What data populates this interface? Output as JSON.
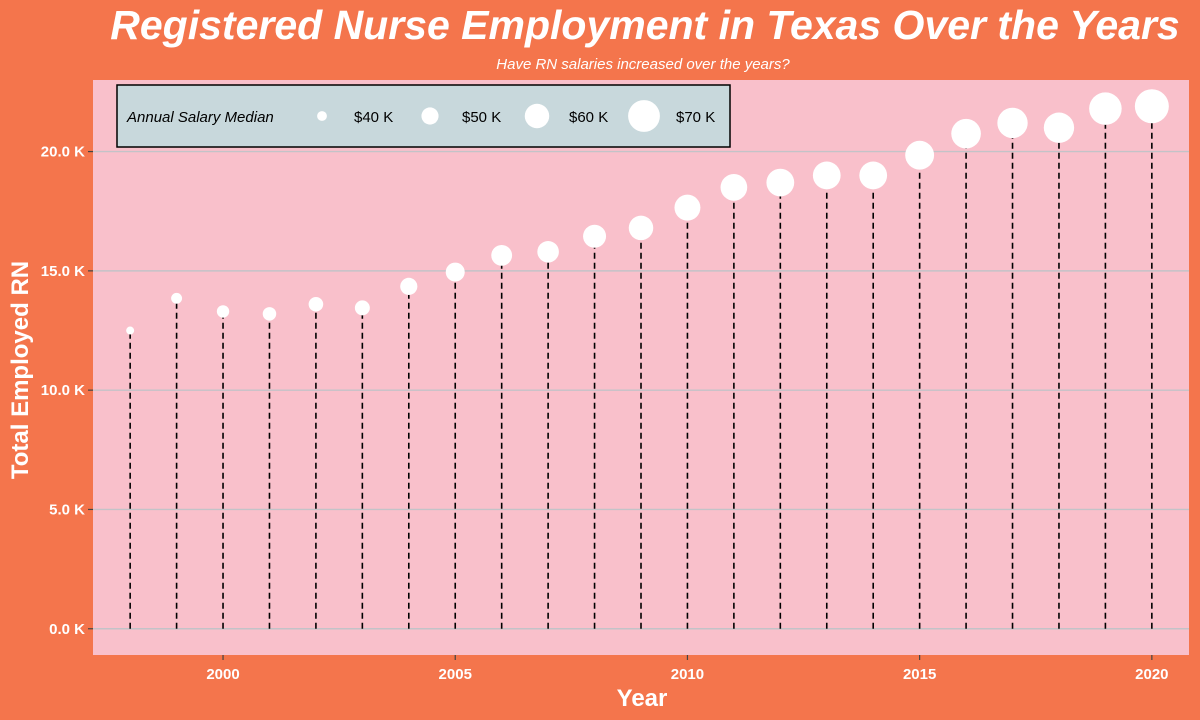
{
  "colors": {
    "background": "#f4754c",
    "panel": "#f9c0cb",
    "legend_bg": "#c8d8dc",
    "point": "#ffffff",
    "stem": "#000000",
    "grid": "#c3c3c8"
  },
  "chart_data": {
    "type": "scatter",
    "style": "lollipop with dashed vertical stems; point size encodes annual salary median",
    "title": "Registered Nurse Employment in Texas Over the Years",
    "subtitle": "Have RN salaries increased over the years?",
    "xlabel": "Year",
    "ylabel": "Total Employed RN",
    "xlim": [
      1997.2,
      2020.8
    ],
    "ylim": [
      -1100,
      23000
    ],
    "x_ticks": [
      2000,
      2005,
      2010,
      2015,
      2020
    ],
    "x_tick_labels": [
      "2000",
      "2005",
      "2010",
      "2015",
      "2020"
    ],
    "y_ticks": [
      0,
      5000,
      10000,
      15000,
      20000
    ],
    "y_tick_labels": [
      "0.0 K",
      "5.0 K",
      "10.0 K",
      "15.0 K",
      "20.0 K"
    ],
    "grid": "horizontal major gridlines",
    "size_legend": {
      "title": "Annual Salary Median",
      "placement": "top-left inside panel",
      "values": [
        40000,
        50000,
        60000,
        70000
      ],
      "labels": [
        "$40 K",
        "$50 K",
        "$60 K",
        "$70 K"
      ]
    },
    "points": [
      {
        "year": 1998,
        "employed": 12500,
        "salary": 37500
      },
      {
        "year": 1999,
        "employed": 13850,
        "salary": 41500
      },
      {
        "year": 2000,
        "employed": 13300,
        "salary": 43500
      },
      {
        "year": 2001,
        "employed": 13200,
        "salary": 45000
      },
      {
        "year": 2002,
        "employed": 13600,
        "salary": 46500
      },
      {
        "year": 2003,
        "employed": 13450,
        "salary": 47000
      },
      {
        "year": 2004,
        "employed": 14350,
        "salary": 50000
      },
      {
        "year": 2005,
        "employed": 14950,
        "salary": 52500
      },
      {
        "year": 2006,
        "employed": 15650,
        "salary": 55000
      },
      {
        "year": 2007,
        "employed": 15800,
        "salary": 56000
      },
      {
        "year": 2008,
        "employed": 16450,
        "salary": 58000
      },
      {
        "year": 2009,
        "employed": 16800,
        "salary": 60000
      },
      {
        "year": 2010,
        "employed": 17650,
        "salary": 62000
      },
      {
        "year": 2011,
        "employed": 18500,
        "salary": 63000
      },
      {
        "year": 2012,
        "employed": 18700,
        "salary": 64500
      },
      {
        "year": 2013,
        "employed": 19000,
        "salary": 64500
      },
      {
        "year": 2014,
        "employed": 19000,
        "salary": 64500
      },
      {
        "year": 2015,
        "employed": 19850,
        "salary": 66000
      },
      {
        "year": 2016,
        "employed": 20750,
        "salary": 67000
      },
      {
        "year": 2017,
        "employed": 21200,
        "salary": 68000
      },
      {
        "year": 2018,
        "employed": 21000,
        "salary": 68000
      },
      {
        "year": 2019,
        "employed": 21800,
        "salary": 71000
      },
      {
        "year": 2020,
        "employed": 21900,
        "salary": 73000
      }
    ]
  }
}
